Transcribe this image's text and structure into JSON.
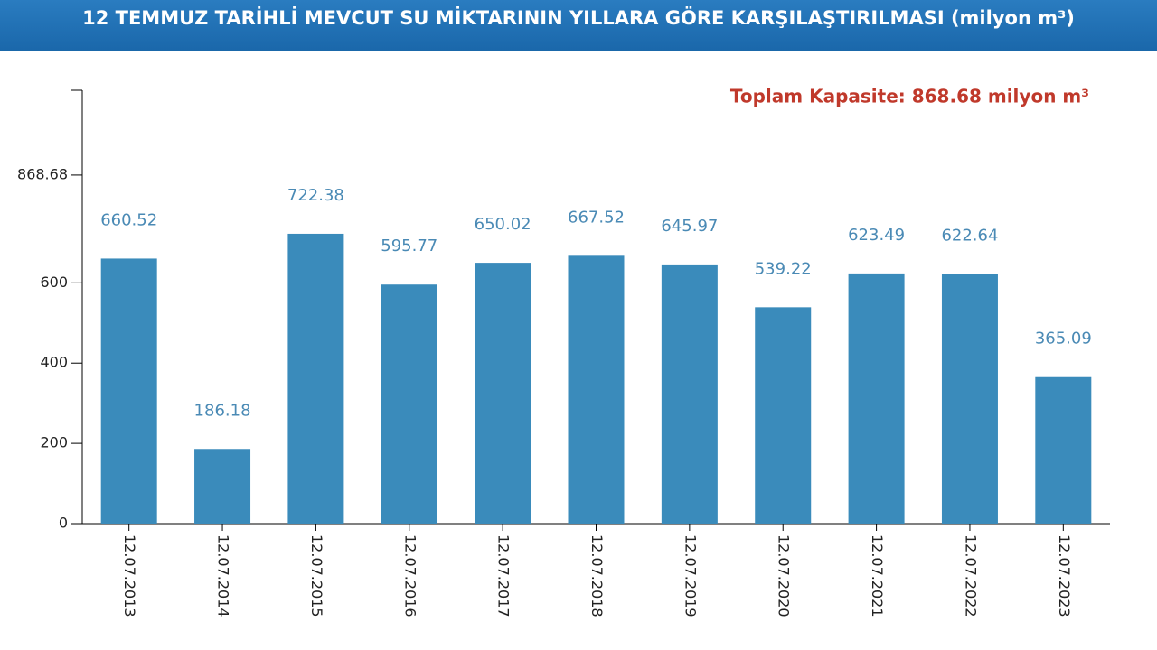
{
  "chart_data": {
    "type": "bar",
    "title": "12 TEMMUZ TARİHLİ MEVCUT SU MİKTARININ YILLARA GÖRE KARŞILAŞTIRILMASI (milyon m³)",
    "annotation": "Toplam Kapasite: 868.68 milyon m³",
    "categories": [
      "12.07.2013",
      "12.07.2014",
      "12.07.2015",
      "12.07.2016",
      "12.07.2017",
      "12.07.2018",
      "12.07.2019",
      "12.07.2020",
      "12.07.2021",
      "12.07.2022",
      "12.07.2023"
    ],
    "values": [
      660.52,
      186.18,
      722.38,
      595.77,
      650.02,
      667.52,
      645.97,
      539.22,
      623.49,
      622.64,
      365.09
    ],
    "color": "#3a8bbb",
    "ylim": [
      0,
      1080
    ],
    "yticks": [
      0,
      200,
      400,
      600,
      868.68
    ],
    "grid": false
  }
}
